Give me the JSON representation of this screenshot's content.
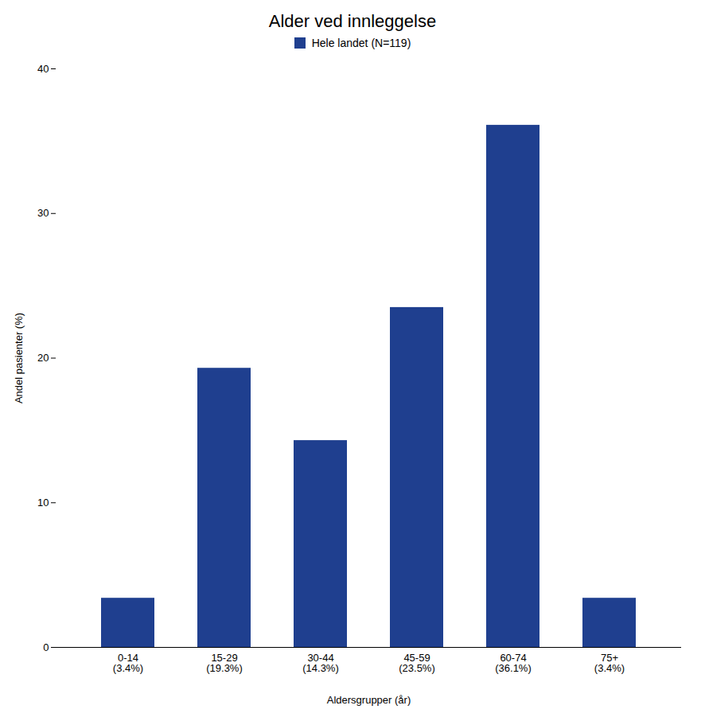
{
  "chart_data": {
    "type": "bar",
    "title": "Alder ved innleggelse",
    "xlabel": "Aldersgrupper (år)",
    "ylabel": "Andel pasienter (%)",
    "categories": [
      "0-14\n(3.4%)",
      "15-29\n(19.3%)",
      "30-44\n(14.3%)",
      "45-59\n(23.5%)",
      "60-74\n(36.1%)",
      "75+\n(3.4%)"
    ],
    "series": [
      {
        "name": "Hele landet (N=119)",
        "color": "#1f3f8f",
        "values": [
          3.4,
          19.3,
          14.3,
          23.5,
          36.1,
          3.4
        ]
      }
    ],
    "ylim": [
      0,
      40
    ],
    "yticks": [
      0,
      10,
      20,
      30,
      40
    ],
    "grid": false,
    "legend": "top"
  }
}
